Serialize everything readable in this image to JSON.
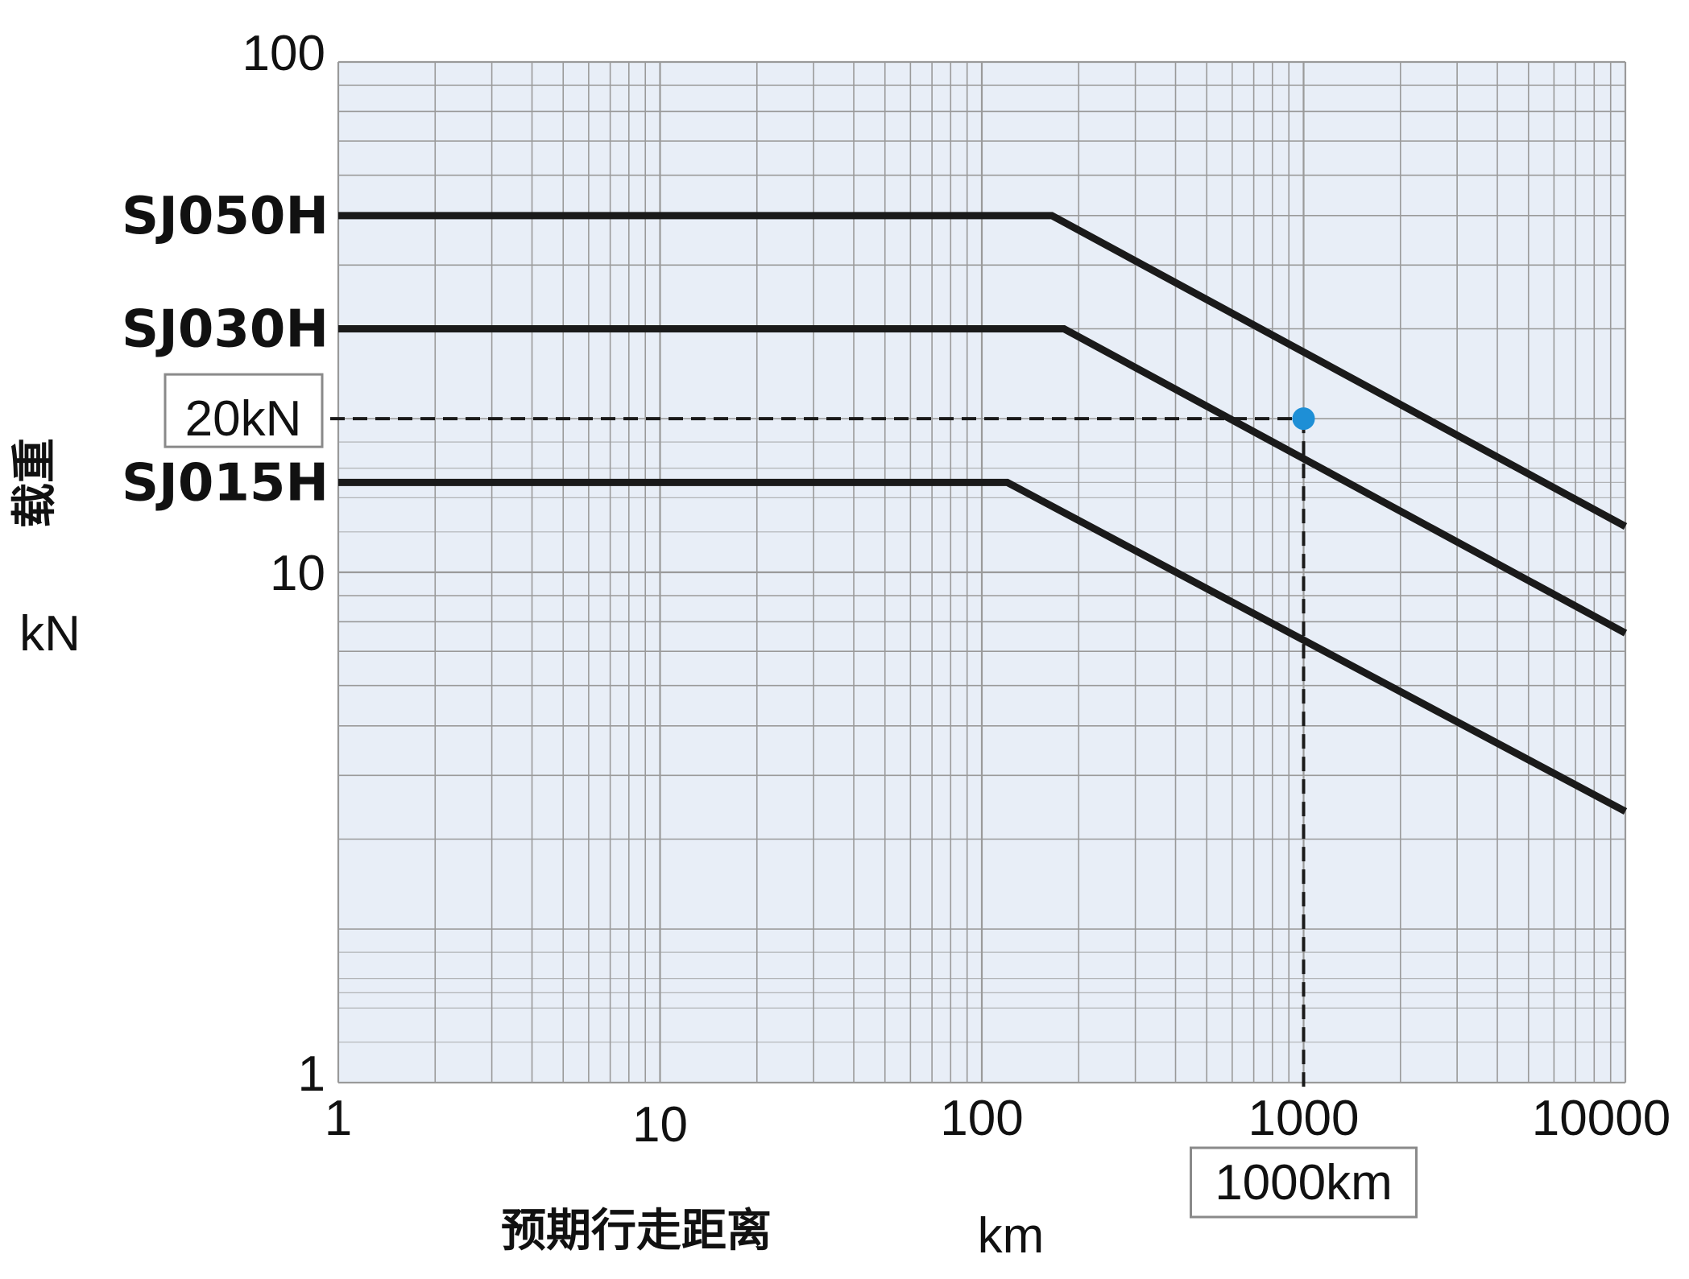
{
  "chart_data": {
    "type": "line",
    "x_scale": "log",
    "y_scale": "log",
    "xlim": [
      1,
      10000
    ],
    "ylim": [
      1,
      100
    ],
    "grid": true,
    "x_ticks": [
      "1",
      "10",
      "100",
      "1000",
      "10000"
    ],
    "y_ticks": [
      "1",
      "10",
      "100"
    ],
    "xlabel": "预期行走距离",
    "ylabel": "载重",
    "x_unit": "km",
    "y_unit": "kN",
    "series": [
      {
        "name": "SJ050H",
        "x": [
          1,
          165,
          10000
        ],
        "y": [
          50,
          50,
          12.3
        ]
      },
      {
        "name": "SJ030H",
        "x": [
          1,
          180,
          10000
        ],
        "y": [
          30,
          30,
          7.6
        ]
      },
      {
        "name": "SJ015H",
        "x": [
          1,
          120,
          10000
        ],
        "y": [
          15,
          15,
          3.4
        ]
      }
    ],
    "annotation": {
      "x": 1000,
      "y": 20,
      "x_label": "1000km",
      "y_label": "20kN"
    },
    "colors": {
      "fill": "#e8eef7",
      "grid": "#9a9a9a",
      "line": "#1a1a1a",
      "marker": "#1e8fd6"
    }
  }
}
